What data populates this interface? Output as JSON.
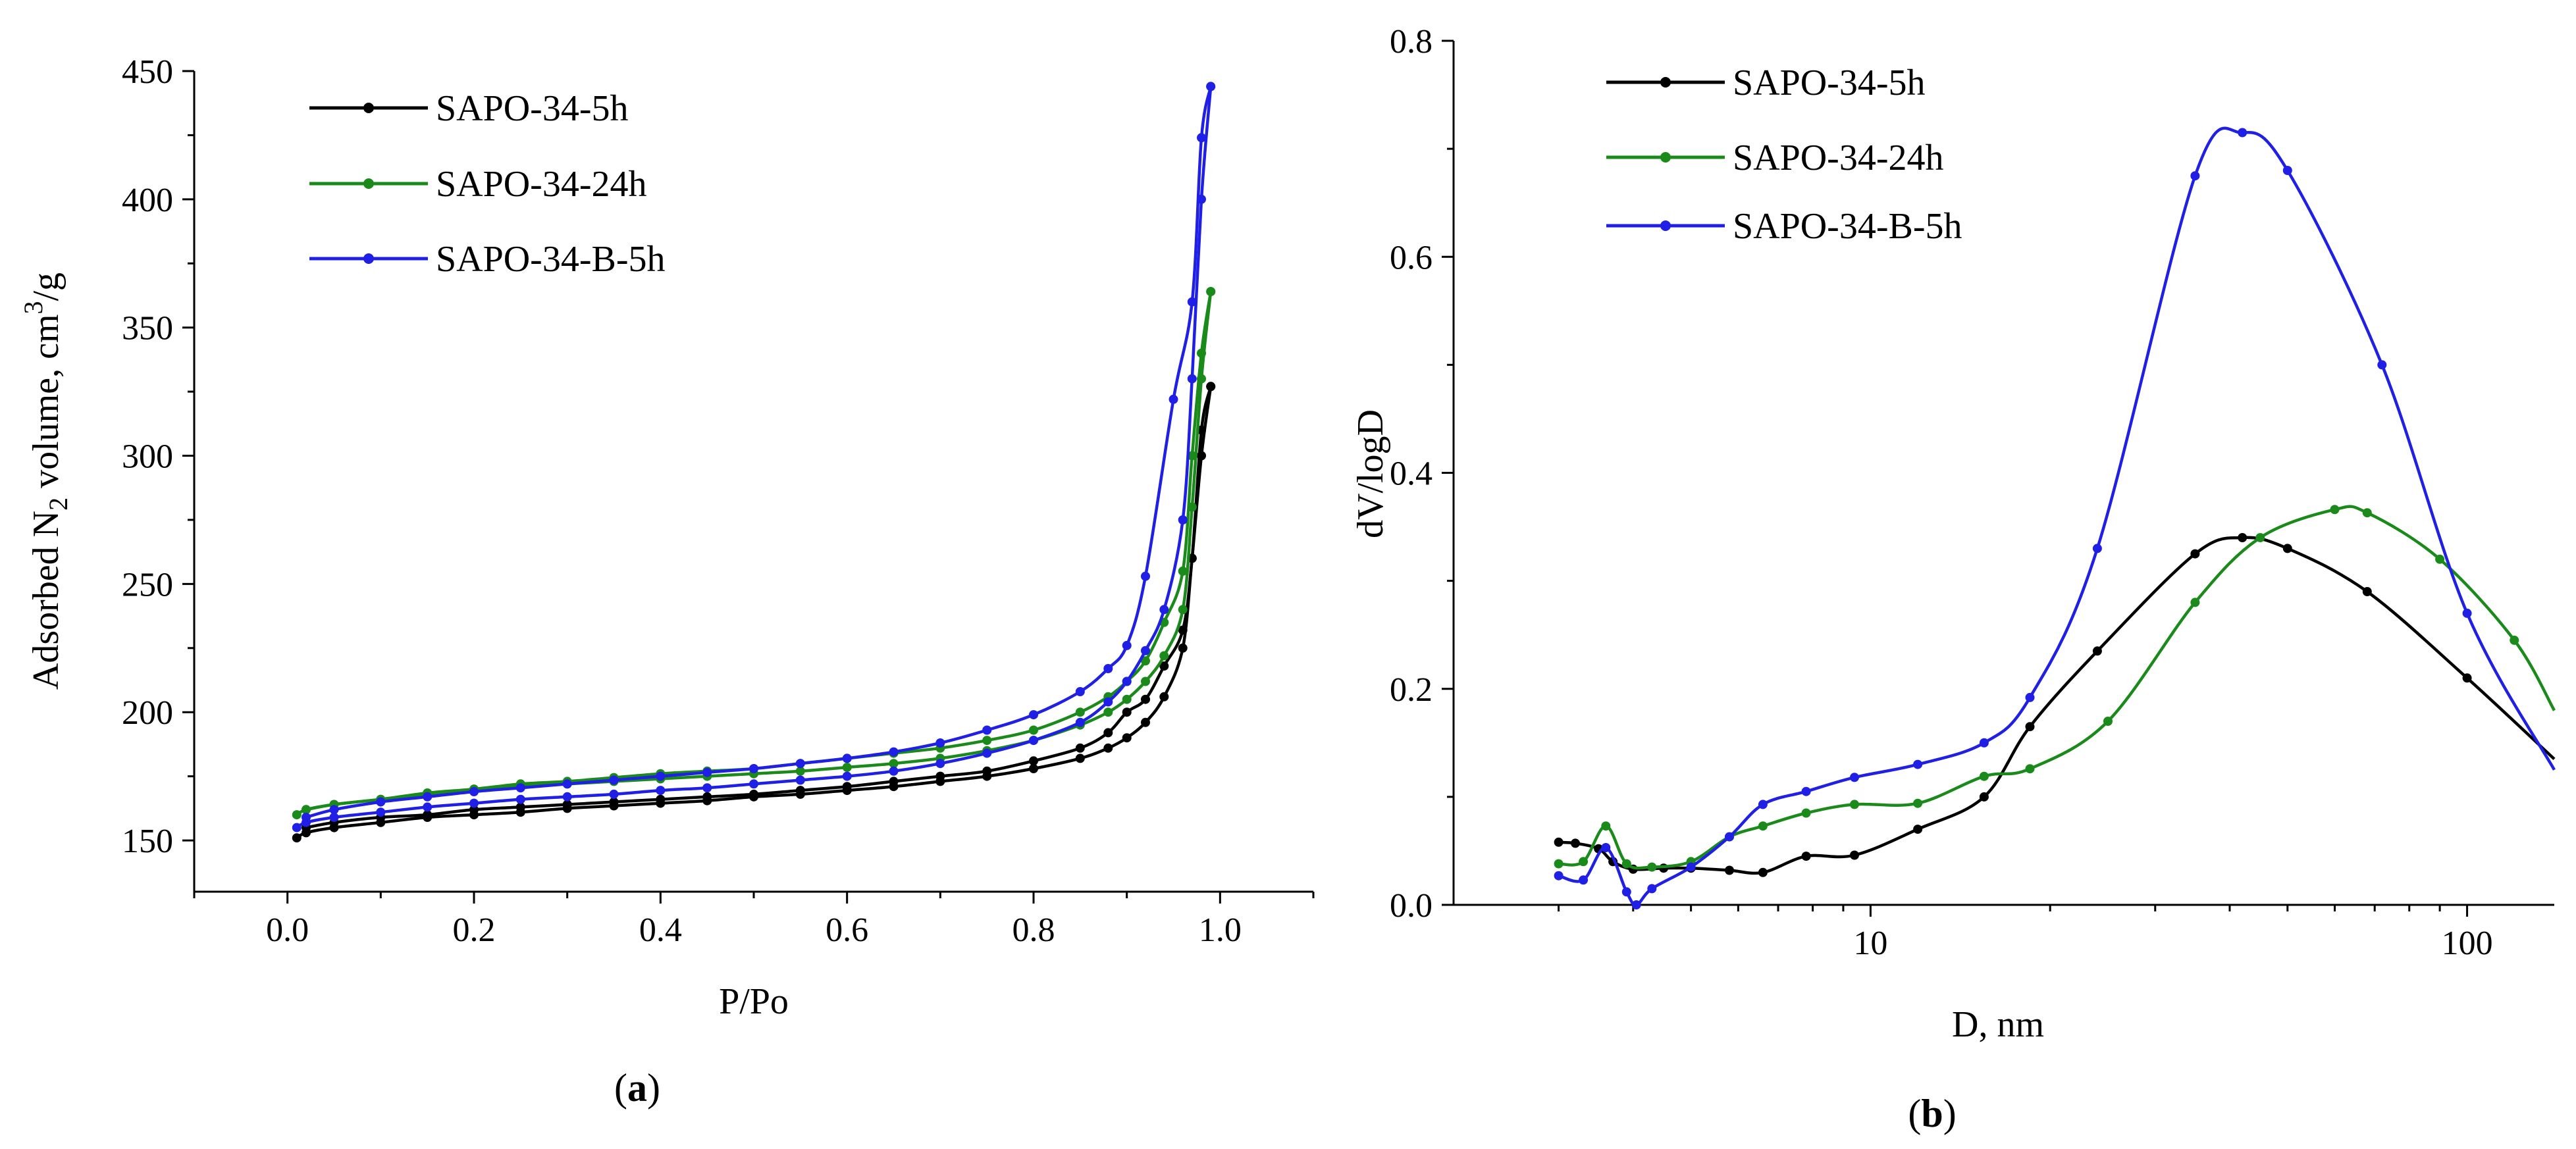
{
  "panels": {
    "a": {
      "label_open": "(",
      "label_letter": "a",
      "label_close": ")"
    },
    "b": {
      "label_open": "(",
      "label_letter": "b",
      "label_close": ")"
    }
  },
  "chart_data": [
    {
      "id": "a",
      "type": "line",
      "title": "",
      "xlabel": "P/Po",
      "ylabel": "Adsorbed N2 volume, cm3/g",
      "ylabel_parts": {
        "pre": "Adsorbed N",
        "sub": "2",
        "mid": " volume, cm",
        "sup": "3",
        "post": "/g"
      },
      "xlim": [
        -0.1,
        1.1
      ],
      "ylim": [
        130,
        450
      ],
      "xticks": [
        0.0,
        0.2,
        0.4,
        0.6,
        0.8,
        1.0
      ],
      "xtick_labels": [
        "0.0",
        "0.2",
        "0.4",
        "0.6",
        "0.8",
        "1.0"
      ],
      "yticks": [
        150,
        200,
        250,
        300,
        350,
        400,
        450
      ],
      "ytick_labels": [
        "150",
        "200",
        "250",
        "300",
        "350",
        "400",
        "450"
      ],
      "legend_position": "top-left",
      "series": [
        {
          "name": "SAPO-34-5h",
          "color": "#000000",
          "adsorption": [
            [
              0.01,
              151
            ],
            [
              0.02,
              153
            ],
            [
              0.05,
              155
            ],
            [
              0.1,
              157
            ],
            [
              0.15,
              159
            ],
            [
              0.2,
              160
            ],
            [
              0.25,
              161
            ],
            [
              0.3,
              162.5
            ],
            [
              0.35,
              163.5
            ],
            [
              0.4,
              164.5
            ],
            [
              0.45,
              165.5
            ],
            [
              0.5,
              167
            ],
            [
              0.55,
              168
            ],
            [
              0.6,
              169.5
            ],
            [
              0.65,
              171
            ],
            [
              0.7,
              173
            ],
            [
              0.75,
              175
            ],
            [
              0.8,
              178
            ],
            [
              0.85,
              182
            ],
            [
              0.88,
              186
            ],
            [
              0.9,
              190
            ],
            [
              0.92,
              196
            ],
            [
              0.94,
              206
            ],
            [
              0.96,
              225
            ],
            [
              0.97,
              260
            ],
            [
              0.98,
              300
            ],
            [
              0.99,
              327
            ]
          ],
          "desorption": [
            [
              0.99,
              327
            ],
            [
              0.98,
              310
            ],
            [
              0.97,
              260
            ],
            [
              0.96,
              232
            ],
            [
              0.94,
              218
            ],
            [
              0.92,
              205
            ],
            [
              0.9,
              200
            ],
            [
              0.88,
              192
            ],
            [
              0.85,
              186
            ],
            [
              0.8,
              181
            ],
            [
              0.75,
              177
            ],
            [
              0.7,
              175
            ],
            [
              0.65,
              173
            ],
            [
              0.6,
              171
            ],
            [
              0.55,
              169.5
            ],
            [
              0.5,
              168
            ],
            [
              0.45,
              167
            ],
            [
              0.4,
              166
            ],
            [
              0.35,
              165
            ],
            [
              0.3,
              164
            ],
            [
              0.25,
              163
            ],
            [
              0.2,
              162
            ],
            [
              0.15,
              160
            ],
            [
              0.1,
              159
            ],
            [
              0.05,
              157
            ],
            [
              0.02,
              155
            ]
          ]
        },
        {
          "name": "SAPO-34-24h",
          "color": "#1a8a1a",
          "adsorption": [
            [
              0.01,
              160
            ],
            [
              0.02,
              162
            ],
            [
              0.05,
              164
            ],
            [
              0.1,
              166
            ],
            [
              0.15,
              168
            ],
            [
              0.2,
              169.5
            ],
            [
              0.25,
              171
            ],
            [
              0.3,
              172
            ],
            [
              0.35,
              173
            ],
            [
              0.4,
              174
            ],
            [
              0.45,
              175
            ],
            [
              0.5,
              176
            ],
            [
              0.55,
              177
            ],
            [
              0.6,
              178.5
            ],
            [
              0.65,
              180
            ],
            [
              0.7,
              182
            ],
            [
              0.75,
              185
            ],
            [
              0.8,
              189
            ],
            [
              0.85,
              195
            ],
            [
              0.88,
              200
            ],
            [
              0.9,
              205
            ],
            [
              0.92,
              212
            ],
            [
              0.94,
              222
            ],
            [
              0.96,
              240
            ],
            [
              0.97,
              280
            ],
            [
              0.98,
              330
            ],
            [
              0.99,
              364
            ]
          ],
          "desorption": [
            [
              0.99,
              364
            ],
            [
              0.98,
              340
            ],
            [
              0.97,
              300
            ],
            [
              0.96,
              255
            ],
            [
              0.94,
              235
            ],
            [
              0.92,
              220
            ],
            [
              0.9,
              212
            ],
            [
              0.88,
              206
            ],
            [
              0.85,
              200
            ],
            [
              0.8,
              193
            ],
            [
              0.75,
              189
            ],
            [
              0.7,
              186
            ],
            [
              0.65,
              184
            ],
            [
              0.6,
              182
            ],
            [
              0.55,
              180
            ],
            [
              0.5,
              178
            ],
            [
              0.45,
              177
            ],
            [
              0.4,
              176
            ],
            [
              0.35,
              174.5
            ],
            [
              0.3,
              173
            ],
            [
              0.25,
              172
            ],
            [
              0.2,
              170
            ],
            [
              0.15,
              168.5
            ],
            [
              0.1,
              166
            ],
            [
              0.05,
              164
            ],
            [
              0.02,
              162
            ]
          ]
        },
        {
          "name": "SAPO-34-B-5h",
          "color": "#1f1fe6",
          "adsorption": [
            [
              0.01,
              155
            ],
            [
              0.02,
              157
            ],
            [
              0.05,
              159
            ],
            [
              0.1,
              161
            ],
            [
              0.15,
              163
            ],
            [
              0.2,
              164.5
            ],
            [
              0.25,
              166
            ],
            [
              0.3,
              167
            ],
            [
              0.35,
              168
            ],
            [
              0.4,
              169.5
            ],
            [
              0.45,
              170.5
            ],
            [
              0.5,
              172
            ],
            [
              0.55,
              173.5
            ],
            [
              0.6,
              175
            ],
            [
              0.65,
              177
            ],
            [
              0.7,
              180
            ],
            [
              0.75,
              184
            ],
            [
              0.8,
              189
            ],
            [
              0.85,
              196
            ],
            [
              0.88,
              204
            ],
            [
              0.9,
              212
            ],
            [
              0.92,
              224
            ],
            [
              0.94,
              240
            ],
            [
              0.96,
              275
            ],
            [
              0.97,
              330
            ],
            [
              0.98,
              400
            ],
            [
              0.99,
              444
            ]
          ],
          "desorption": [
            [
              0.99,
              444
            ],
            [
              0.98,
              424
            ],
            [
              0.97,
              360
            ],
            [
              0.95,
              322
            ],
            [
              0.92,
              253
            ],
            [
              0.9,
              226
            ],
            [
              0.88,
              217
            ],
            [
              0.85,
              208
            ],
            [
              0.8,
              199
            ],
            [
              0.75,
              193
            ],
            [
              0.7,
              188
            ],
            [
              0.65,
              184.5
            ],
            [
              0.6,
              182
            ],
            [
              0.55,
              180
            ],
            [
              0.5,
              178
            ],
            [
              0.45,
              176.5
            ],
            [
              0.4,
              175
            ],
            [
              0.35,
              173.5
            ],
            [
              0.3,
              172
            ],
            [
              0.25,
              170.5
            ],
            [
              0.2,
              169
            ],
            [
              0.15,
              167
            ],
            [
              0.1,
              165
            ],
            [
              0.05,
              162
            ],
            [
              0.02,
              159
            ]
          ]
        }
      ]
    },
    {
      "id": "b",
      "type": "line",
      "title": "",
      "xlabel": "D, nm",
      "ylabel": "dV/logD",
      "xscale": "log",
      "xlim": [
        2.0,
        140
      ],
      "ylim": [
        0.0,
        0.8
      ],
      "xticks": [
        10,
        100
      ],
      "xtick_labels": [
        "10",
        "100"
      ],
      "yticks": [
        0.0,
        0.2,
        0.4,
        0.6,
        0.8
      ],
      "ytick_labels": [
        "0.0",
        "0.2",
        "0.4",
        "0.6",
        "0.8"
      ],
      "legend_position": "top-left",
      "series": [
        {
          "name": "SAPO-34-5h",
          "color": "#000000",
          "points": [
            [
              3.0,
              0.058
            ],
            [
              3.2,
              0.057
            ],
            [
              3.5,
              0.052
            ],
            [
              3.7,
              0.04
            ],
            [
              4.0,
              0.033
            ],
            [
              4.5,
              0.034
            ],
            [
              5.0,
              0.034
            ],
            [
              5.8,
              0.032
            ],
            [
              6.6,
              0.03
            ],
            [
              7.8,
              0.045
            ],
            [
              9.4,
              0.046
            ],
            [
              12,
              0.07
            ],
            [
              15.5,
              0.1
            ],
            [
              18.5,
              0.165
            ],
            [
              24,
              0.235
            ],
            [
              35,
              0.325
            ],
            [
              42,
              0.34
            ],
            [
              50,
              0.33
            ],
            [
              68,
              0.29
            ],
            [
              100,
              0.21
            ],
            [
              140,
              0.135
            ]
          ]
        },
        {
          "name": "SAPO-34-24h",
          "color": "#1a8a1a",
          "points": [
            [
              3.0,
              0.038
            ],
            [
              3.3,
              0.04
            ],
            [
              3.6,
              0.073
            ],
            [
              3.9,
              0.038
            ],
            [
              4.3,
              0.035
            ],
            [
              5.0,
              0.04
            ],
            [
              5.8,
              0.063
            ],
            [
              6.6,
              0.073
            ],
            [
              7.8,
              0.085
            ],
            [
              9.4,
              0.093
            ],
            [
              12,
              0.094
            ],
            [
              15.5,
              0.119
            ],
            [
              18.5,
              0.126
            ],
            [
              25,
              0.17
            ],
            [
              35,
              0.28
            ],
            [
              45,
              0.34
            ],
            [
              60,
              0.366
            ],
            [
              68,
              0.363
            ],
            [
              90,
              0.32
            ],
            [
              120,
              0.245
            ],
            [
              140,
              0.18
            ]
          ]
        },
        {
          "name": "SAPO-34-B-5h",
          "color": "#1f1fe6",
          "points": [
            [
              3.0,
              0.027
            ],
            [
              3.3,
              0.023
            ],
            [
              3.6,
              0.053
            ],
            [
              3.9,
              0.012
            ],
            [
              4.05,
              0.0
            ],
            [
              4.3,
              0.015
            ],
            [
              5.0,
              0.035
            ],
            [
              5.8,
              0.063
            ],
            [
              6.6,
              0.093
            ],
            [
              7.8,
              0.105
            ],
            [
              9.4,
              0.118
            ],
            [
              12,
              0.13
            ],
            [
              15.5,
              0.15
            ],
            [
              18.5,
              0.192
            ],
            [
              24,
              0.33
            ],
            [
              35,
              0.675
            ],
            [
              42,
              0.715
            ],
            [
              50,
              0.68
            ],
            [
              72,
              0.5
            ],
            [
              100,
              0.27
            ],
            [
              140,
              0.125
            ]
          ]
        }
      ]
    }
  ]
}
